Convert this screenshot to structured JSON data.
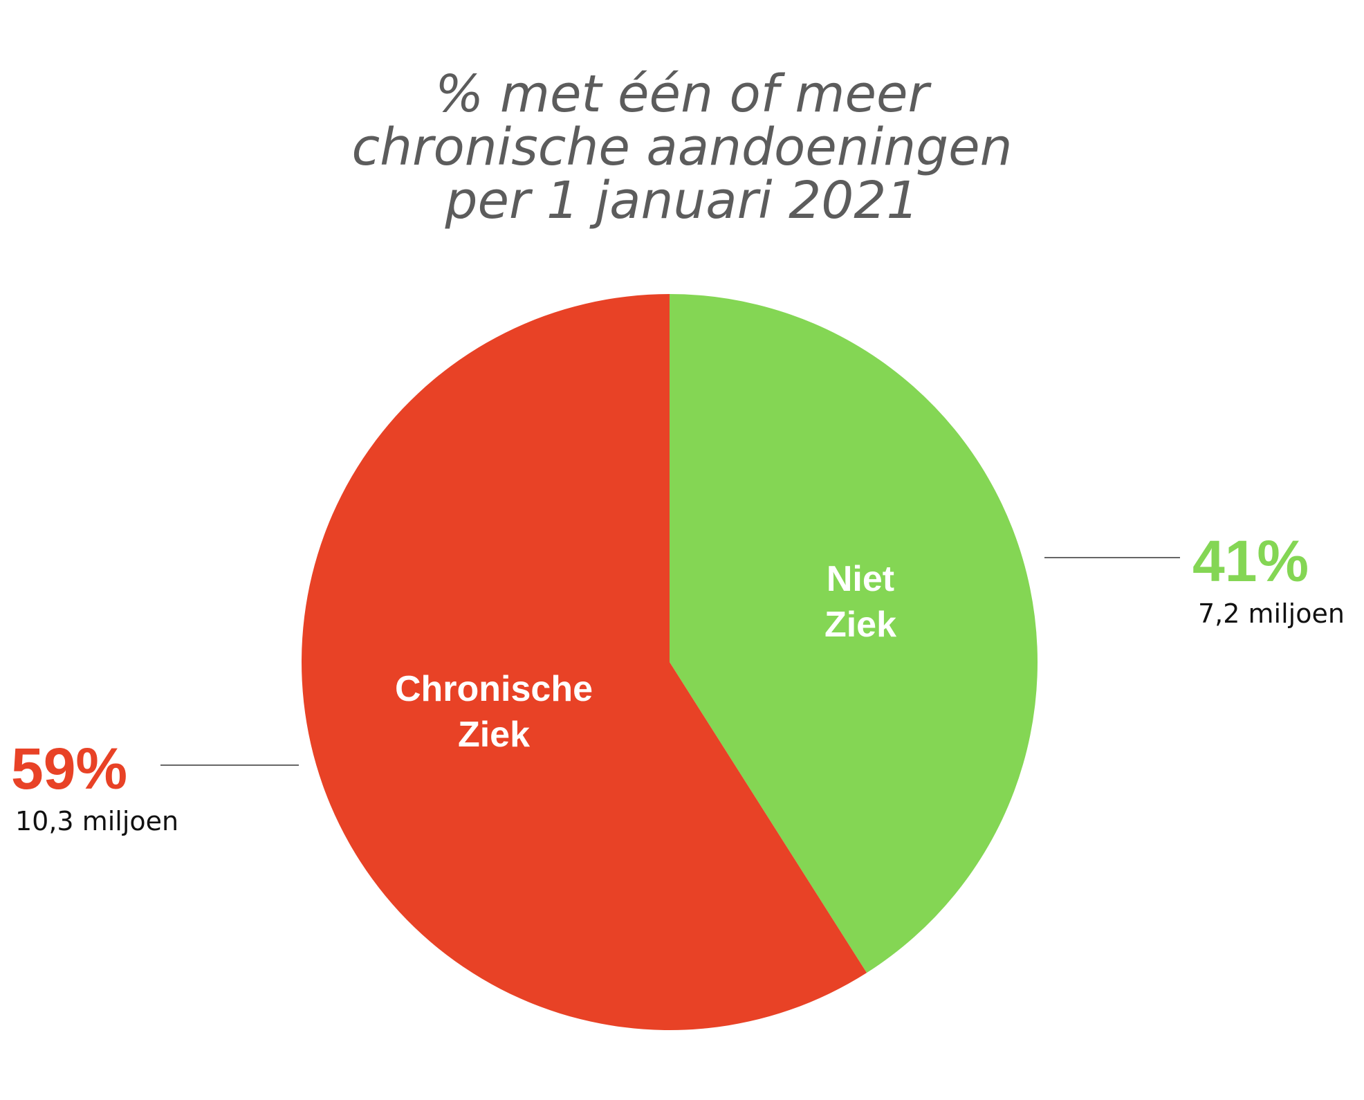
{
  "chart_data": {
    "type": "pie",
    "title_lines": [
      "% met één of meer",
      "chronische aandoeningen",
      "per 1 januari 2021"
    ],
    "slices": [
      {
        "label_lines": [
          "Niet",
          "Ziek"
        ],
        "value": 41,
        "percent_label": "41%",
        "sub_label": "7,2 miljoen",
        "color": "#84d654"
      },
      {
        "label_lines": [
          "Chronische",
          "Ziek"
        ],
        "value": 59,
        "percent_label": "59%",
        "sub_label": "10,3 miljoen",
        "color": "#e84226"
      }
    ],
    "start_angle": "12 o'clock",
    "direction": "clockwise"
  }
}
